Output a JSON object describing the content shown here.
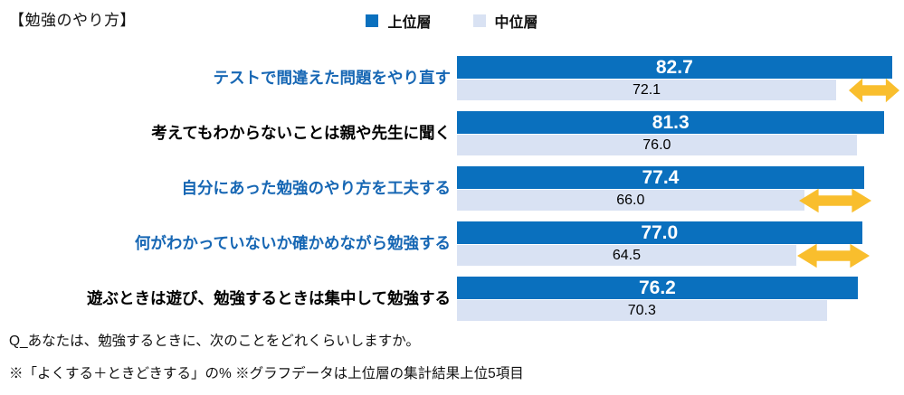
{
  "title": "【勉強のやり方】",
  "legend": {
    "items": [
      {
        "label": "上位層",
        "color": "#0A70BE"
      },
      {
        "label": "中位層",
        "color": "#D9E2F3"
      }
    ]
  },
  "chart_data": {
    "type": "bar",
    "orientation": "horizontal",
    "title": "勉強のやり方",
    "categories": [
      "テストで間違えた問題をやり直す",
      "考えてもわからないことは親や先生に聞く",
      "自分にあった勉強のやり方を工夫する",
      "何がわかっていないか確かめながら勉強する",
      "遊ぶときは遊び、勉強するときは集中して勉強する"
    ],
    "series": [
      {
        "name": "上位層",
        "color": "#0A70BE",
        "values": [
          82.7,
          81.3,
          77.4,
          77.0,
          76.2
        ]
      },
      {
        "name": "中位層",
        "color": "#D9E2F3",
        "values": [
          72.1,
          76.0,
          66.0,
          64.5,
          70.3
        ]
      }
    ],
    "xlim": [
      0,
      85
    ],
    "grid": false,
    "legend_position": "top",
    "value_label_decimals": 1,
    "category_label_colors": [
      "#1767B4",
      "#000000",
      "#1767B4",
      "#1767B4",
      "#000000"
    ],
    "gap_arrows": {
      "color": "#F9BE2D",
      "rows": [
        {
          "row": 0,
          "width": 56
        },
        {
          "row": 2,
          "width": 80
        },
        {
          "row": 3,
          "width": 80
        }
      ]
    }
  },
  "footnotes": {
    "question": "Q_あなたは、勉強するときに、次のことをどれくらいしますか。",
    "note": "※「よくする＋ときどきする」の% ※グラフデータは上位層の集計結果上位5項目"
  }
}
